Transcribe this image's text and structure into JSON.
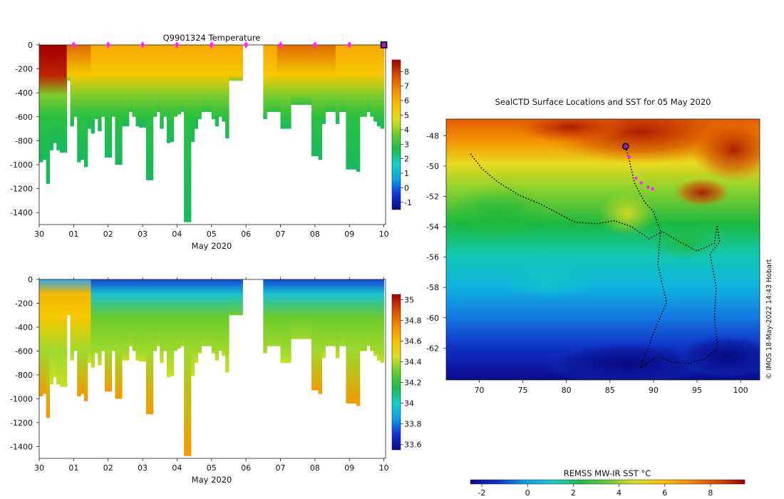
{
  "chart_data": [
    {
      "type": "heatmap",
      "id": "temperature",
      "title": "Q9901324  Temperature",
      "xlabel": "May 2020",
      "x_tick_labels": [
        "30",
        "01",
        "02",
        "03",
        "04",
        "05",
        "06",
        "07",
        "08",
        "09",
        "10"
      ],
      "xlim_days": [
        0,
        10.05
      ],
      "ylabel": "",
      "ylim": [
        -1500,
        0
      ],
      "y_ticks": [
        0,
        -200,
        -400,
        -600,
        -800,
        -1000,
        -1200,
        -1400
      ],
      "colorbar": {
        "min": -1.5,
        "max": 8.8,
        "ticks": [
          -1,
          0,
          1,
          2,
          3,
          4,
          5,
          6,
          7,
          8
        ]
      },
      "surfacing_markers_day": [
        1,
        2,
        3,
        4,
        5,
        6,
        7,
        8,
        9
      ],
      "current_position_day": 10,
      "profiles": [
        {
          "t": 0.05,
          "d": 980
        },
        {
          "t": 0.15,
          "d": 960
        },
        {
          "t": 0.25,
          "d": 1160
        },
        {
          "t": 0.35,
          "d": 880
        },
        {
          "t": 0.45,
          "d": 820
        },
        {
          "t": 0.55,
          "d": 880
        },
        {
          "t": 0.65,
          "d": 900
        },
        {
          "t": 0.75,
          "d": 900
        },
        {
          "t": 0.85,
          "d": 300
        },
        {
          "t": 0.95,
          "d": 680
        },
        {
          "t": 1.05,
          "d": 600
        },
        {
          "t": 1.15,
          "d": 980
        },
        {
          "t": 1.25,
          "d": 960
        },
        {
          "t": 1.35,
          "d": 1020
        },
        {
          "t": 1.45,
          "d": 700
        },
        {
          "t": 1.55,
          "d": 740
        },
        {
          "t": 1.65,
          "d": 620
        },
        {
          "t": 1.75,
          "d": 720
        },
        {
          "t": 1.85,
          "d": 600
        },
        {
          "t": 1.95,
          "d": 940
        },
        {
          "t": 2.05,
          "d": 940
        },
        {
          "t": 2.15,
          "d": 600
        },
        {
          "t": 2.25,
          "d": 1000
        },
        {
          "t": 2.35,
          "d": 1000
        },
        {
          "t": 2.45,
          "d": 680
        },
        {
          "t": 2.55,
          "d": 680
        },
        {
          "t": 2.65,
          "d": 560
        },
        {
          "t": 2.75,
          "d": 600
        },
        {
          "t": 2.85,
          "d": 680
        },
        {
          "t": 2.95,
          "d": 690
        },
        {
          "t": 3.05,
          "d": 690
        },
        {
          "t": 3.15,
          "d": 1130
        },
        {
          "t": 3.25,
          "d": 1130
        },
        {
          "t": 3.35,
          "d": 600
        },
        {
          "t": 3.45,
          "d": 560
        },
        {
          "t": 3.55,
          "d": 700
        },
        {
          "t": 3.65,
          "d": 600
        },
        {
          "t": 3.75,
          "d": 820
        },
        {
          "t": 3.85,
          "d": 810
        },
        {
          "t": 3.95,
          "d": 600
        },
        {
          "t": 4.05,
          "d": 580
        },
        {
          "t": 4.15,
          "d": 560
        },
        {
          "t": 4.25,
          "d": 1480
        },
        {
          "t": 4.35,
          "d": 1480
        },
        {
          "t": 4.45,
          "d": 810
        },
        {
          "t": 4.55,
          "d": 700
        },
        {
          "t": 4.65,
          "d": 620
        },
        {
          "t": 4.75,
          "d": 560
        },
        {
          "t": 4.85,
          "d": 560
        },
        {
          "t": 4.95,
          "d": 560
        },
        {
          "t": 5.05,
          "d": 620
        },
        {
          "t": 5.15,
          "d": 680
        },
        {
          "t": 5.25,
          "d": 600
        },
        {
          "t": 5.35,
          "d": 640
        },
        {
          "t": 5.45,
          "d": 780
        },
        {
          "t": 5.55,
          "d": 300
        },
        {
          "t": 5.65,
          "d": 300
        },
        {
          "t": 5.75,
          "d": 300
        },
        {
          "t": 5.85,
          "d": 300
        },
        {
          "t": 6.55,
          "d": 620
        },
        {
          "t": 6.65,
          "d": 560
        },
        {
          "t": 6.75,
          "d": 560
        },
        {
          "t": 6.85,
          "d": 560
        },
        {
          "t": 6.95,
          "d": 560
        },
        {
          "t": 7.05,
          "d": 700
        },
        {
          "t": 7.15,
          "d": 700
        },
        {
          "t": 7.25,
          "d": 700
        },
        {
          "t": 7.35,
          "d": 500
        },
        {
          "t": 7.45,
          "d": 500
        },
        {
          "t": 7.55,
          "d": 500
        },
        {
          "t": 7.65,
          "d": 500
        },
        {
          "t": 7.75,
          "d": 500
        },
        {
          "t": 7.85,
          "d": 500
        },
        {
          "t": 7.95,
          "d": 930
        },
        {
          "t": 8.05,
          "d": 930
        },
        {
          "t": 8.15,
          "d": 960
        },
        {
          "t": 8.25,
          "d": 660
        },
        {
          "t": 8.35,
          "d": 560
        },
        {
          "t": 8.45,
          "d": 560
        },
        {
          "t": 8.55,
          "d": 560
        },
        {
          "t": 8.65,
          "d": 660
        },
        {
          "t": 8.75,
          "d": 560
        },
        {
          "t": 8.85,
          "d": 560
        },
        {
          "t": 8.95,
          "d": 1040
        },
        {
          "t": 9.05,
          "d": 1040
        },
        {
          "t": 9.15,
          "d": 1040
        },
        {
          "t": 9.25,
          "d": 1060
        },
        {
          "t": 9.35,
          "d": 600
        },
        {
          "t": 9.45,
          "d": 600
        },
        {
          "t": 9.55,
          "d": 560
        },
        {
          "t": 9.65,
          "d": 600
        },
        {
          "t": 9.75,
          "d": 640
        },
        {
          "t": 9.85,
          "d": 680
        },
        {
          "t": 9.95,
          "d": 700
        }
      ]
    },
    {
      "type": "heatmap",
      "id": "salinity",
      "title": "",
      "xlabel": "May 2020",
      "x_tick_labels": [
        "30",
        "01",
        "02",
        "03",
        "04",
        "05",
        "06",
        "07",
        "08",
        "09",
        "10"
      ],
      "xlim_days": [
        0,
        10.05
      ],
      "ylim": [
        -1500,
        0
      ],
      "y_ticks": [
        0,
        -200,
        -400,
        -600,
        -800,
        -1000,
        -1200,
        -1400
      ],
      "colorbar": {
        "min": 33.55,
        "max": 35.05,
        "ticks": [
          33.6,
          33.8,
          34,
          34.2,
          34.4,
          34.6,
          34.8,
          35
        ]
      }
    },
    {
      "type": "heatmap",
      "id": "sst-map",
      "title": "SealCTD Surface Locations and SST for 05 May 2020",
      "x_tick_labels": [
        "70",
        "75",
        "80",
        "85",
        "90",
        "95",
        "100"
      ],
      "xlim": [
        66.2,
        102.2
      ],
      "y_tick_labels": [
        "-48",
        "-50",
        "-52",
        "-54",
        "-56",
        "-58",
        "-60",
        "-62"
      ],
      "ylim": [
        -64.1,
        -46.9
      ],
      "colorbar": {
        "label": "REMSS MW-IR SST °C",
        "min": -2.5,
        "max": 9.5,
        "ticks": [
          -2,
          0,
          2,
          4,
          6,
          8
        ]
      },
      "current_location": [
        86.8,
        -48.7
      ],
      "track": [
        [
          69.0,
          -49.2
        ],
        [
          70.2,
          -50.1
        ],
        [
          72.0,
          -51.0
        ],
        [
          74.5,
          -51.9
        ],
        [
          77.0,
          -52.5
        ],
        [
          79.0,
          -53.1
        ],
        [
          81.0,
          -53.7
        ],
        [
          83.5,
          -53.8
        ],
        [
          85.5,
          -53.6
        ],
        [
          87.5,
          -54.0
        ],
        [
          89.5,
          -54.8
        ],
        [
          91.0,
          -54.3
        ],
        [
          93.0,
          -55.0
        ],
        [
          95.0,
          -55.6
        ],
        [
          97.0,
          -55.1
        ],
        [
          97.3,
          -53.9
        ],
        [
          97.6,
          -55.0
        ],
        [
          96.5,
          -55.8
        ],
        [
          97.2,
          -58.0
        ],
        [
          97.0,
          -60.0
        ],
        [
          97.4,
          -62.0
        ],
        [
          96.0,
          -62.7
        ],
        [
          94.0,
          -63.0
        ],
        [
          92.0,
          -62.9
        ],
        [
          90.5,
          -62.5
        ],
        [
          88.5,
          -63.3
        ],
        [
          90.0,
          -61.0
        ],
        [
          91.5,
          -59.0
        ],
        [
          90.5,
          -56.5
        ],
        [
          90.8,
          -54.3
        ],
        [
          90.0,
          -53.0
        ],
        [
          89.0,
          -52.4
        ],
        [
          87.8,
          -51.1
        ],
        [
          87.3,
          -49.8
        ],
        [
          86.8,
          -48.7
        ]
      ],
      "recent_positions": [
        [
          87.2,
          -49.4
        ],
        [
          88.0,
          -50.8
        ],
        [
          88.6,
          -51.1
        ],
        [
          89.4,
          -51.4
        ],
        [
          89.9,
          -51.5
        ]
      ]
    }
  ],
  "credit": "© IMOS 18-May-2022 14:43 Hobart"
}
